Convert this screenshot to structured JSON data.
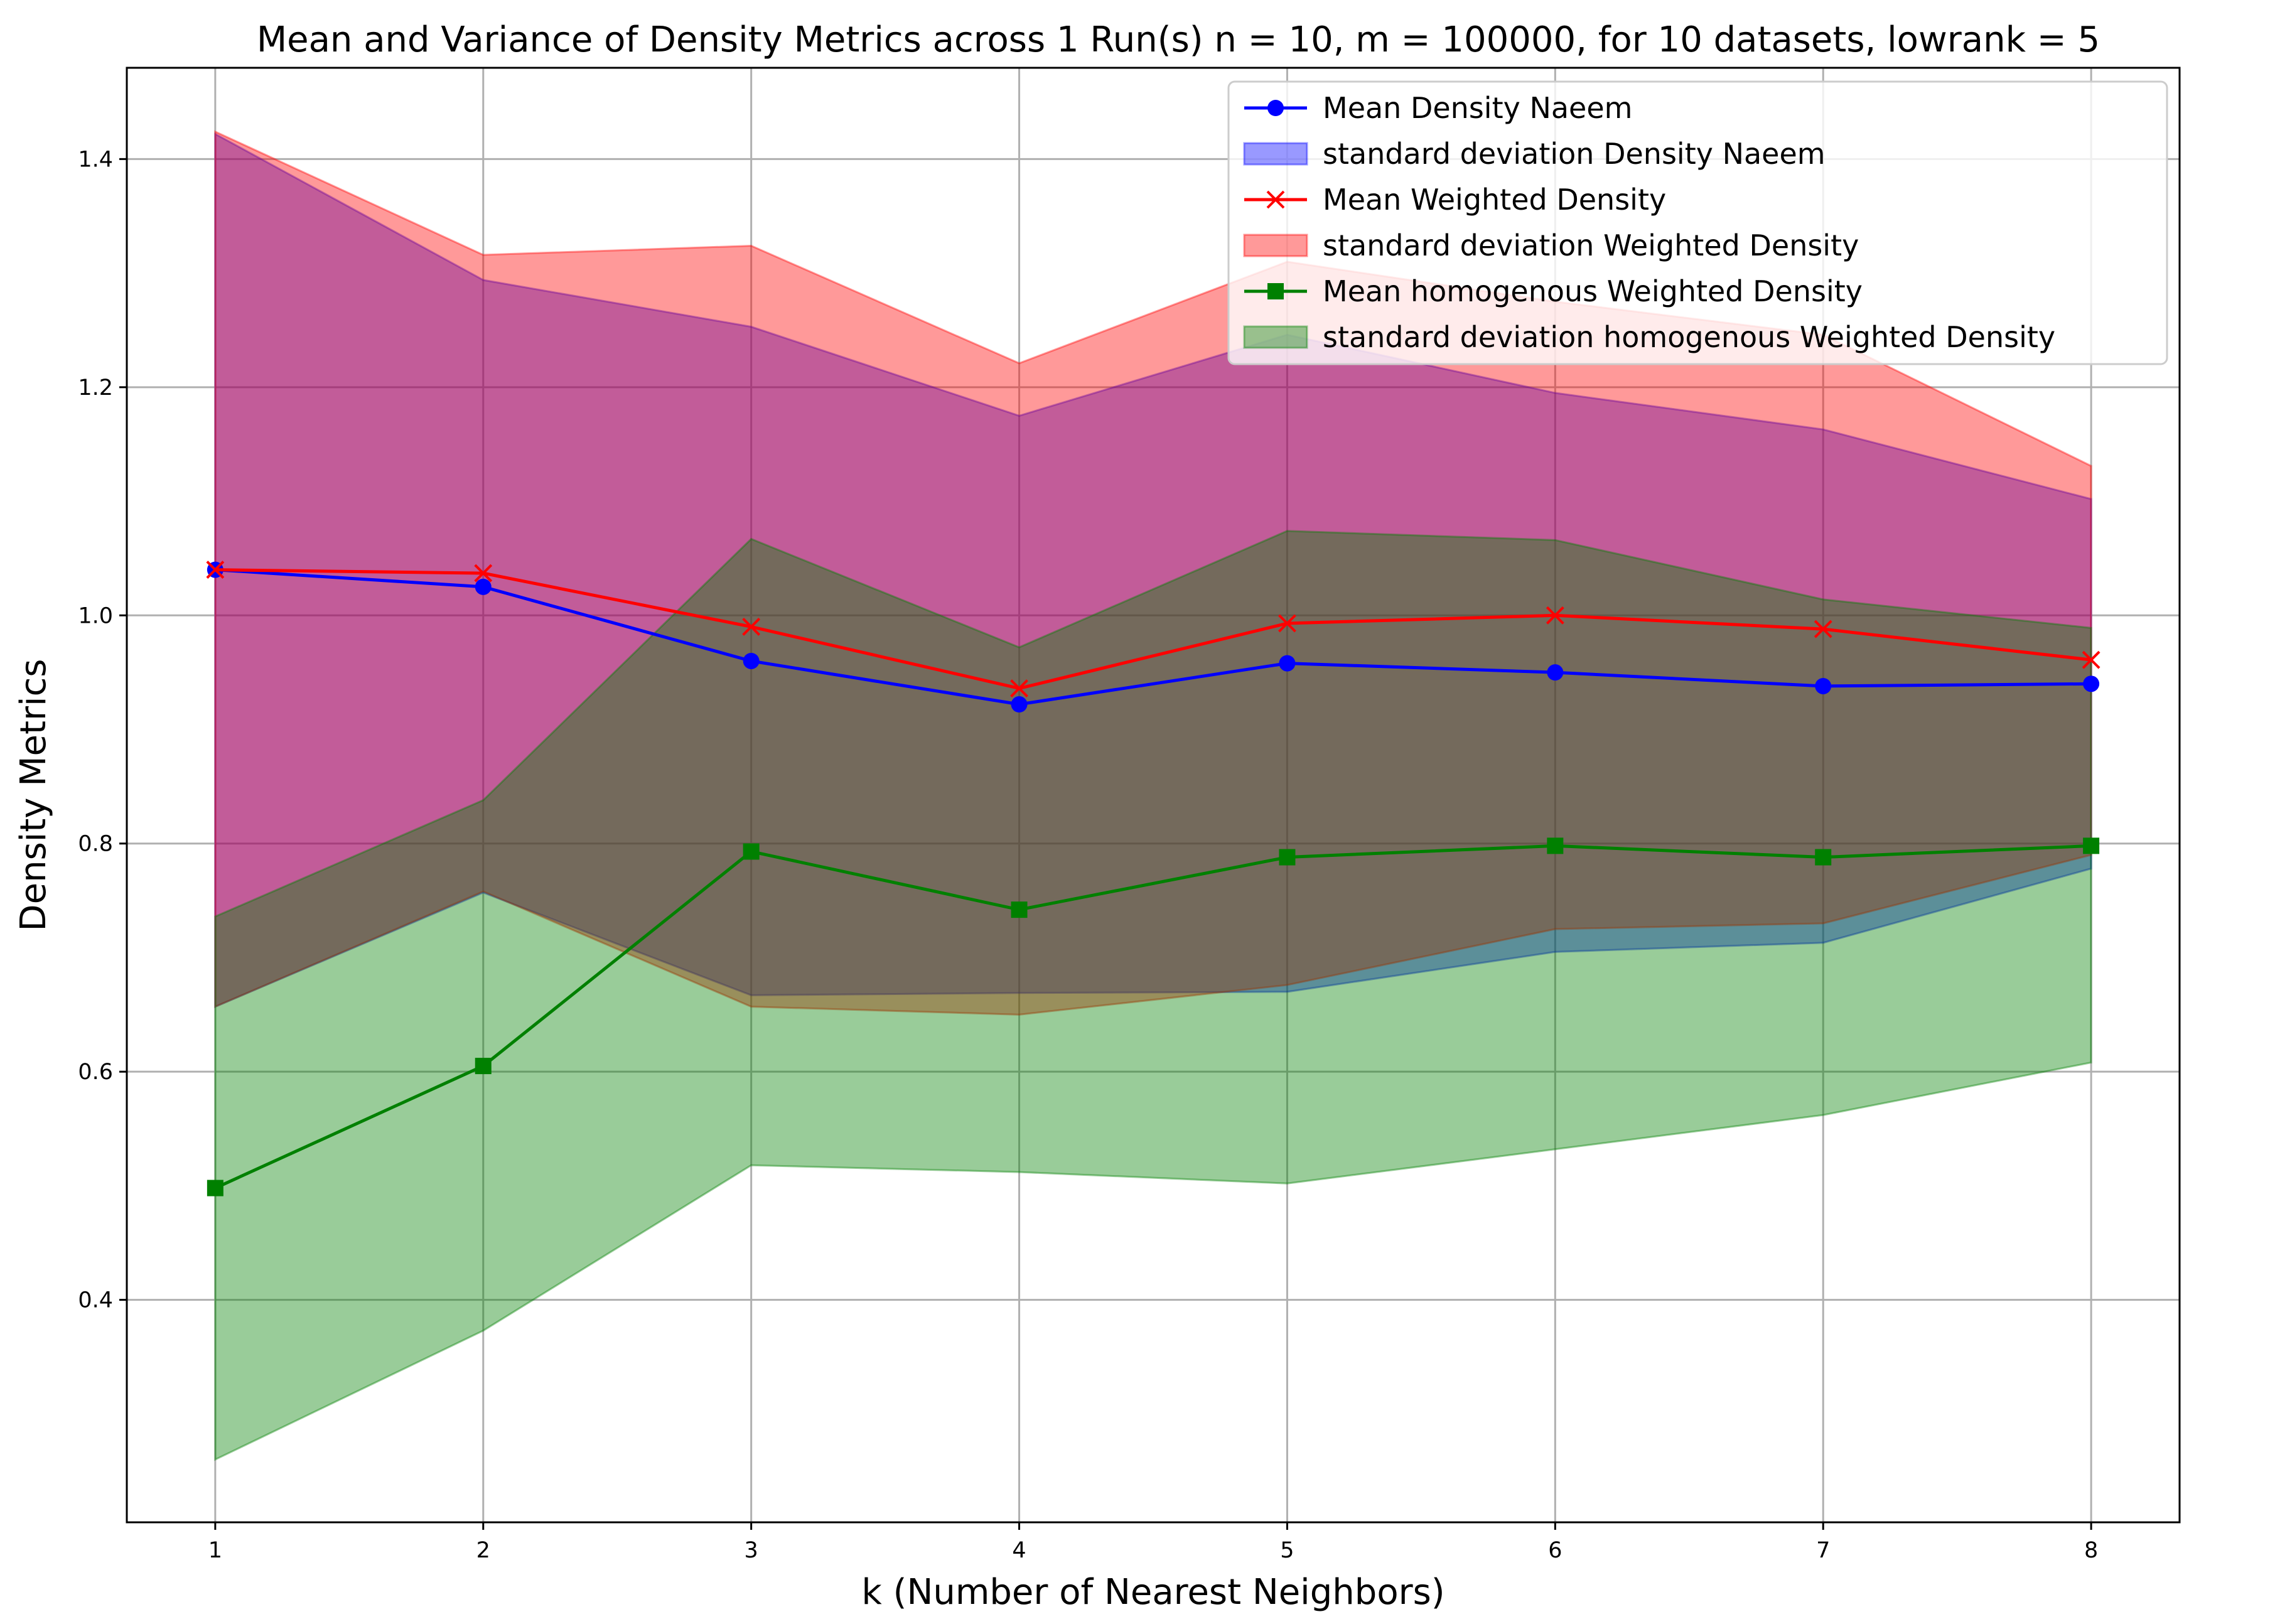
{
  "chart_data": {
    "type": "line",
    "title": "Mean and Variance of Density Metrics across 1 Run(s) n  = 10, m  = 100000, for 10 datasets, lowrank = 5",
    "xlabel": "k (Number of Nearest Neighbors)",
    "ylabel": "Density Metrics",
    "x": [
      1,
      2,
      3,
      4,
      5,
      6,
      7,
      8
    ],
    "xticks": [
      "1",
      "2",
      "3",
      "4",
      "5",
      "6",
      "7",
      "8"
    ],
    "yticks": [
      "0.4",
      "0.6",
      "0.8",
      "1.0",
      "1.2",
      "1.4"
    ],
    "ytick_values": [
      0.4,
      0.6,
      0.8,
      1.0,
      1.2,
      1.4
    ],
    "xlim": [
      0.67,
      8.33
    ],
    "ylim": [
      0.205,
      1.48
    ],
    "grid": true,
    "legend_position": "top-right",
    "series": [
      {
        "name": "Mean Density Naeem",
        "color": "#0000ff",
        "marker": "circle",
        "values": [
          1.04,
          1.025,
          0.96,
          0.922,
          0.958,
          0.95,
          0.938,
          0.94
        ],
        "band_name": "standard deviation Density Naeem",
        "band_color": "#0000ff",
        "band_lower": [
          0.657,
          0.757,
          0.667,
          0.669,
          0.67,
          0.705,
          0.713,
          0.778
        ],
        "band_upper": [
          1.422,
          1.294,
          1.253,
          1.175,
          1.246,
          1.195,
          1.163,
          1.102
        ]
      },
      {
        "name": "Mean Weighted Density",
        "color": "#ff0000",
        "marker": "x",
        "values": [
          1.04,
          1.037,
          0.99,
          0.936,
          0.993,
          1.0,
          0.988,
          0.961
        ],
        "band_name": "standard deviation Weighted Density",
        "band_color": "#ff0000",
        "band_lower": [
          0.657,
          0.758,
          0.657,
          0.65,
          0.676,
          0.725,
          0.73,
          0.79
        ],
        "band_upper": [
          1.424,
          1.316,
          1.324,
          1.221,
          1.31,
          1.275,
          1.246,
          1.131
        ]
      },
      {
        "name": "Mean homogenous Weighted Density",
        "color": "#008000",
        "marker": "square",
        "values": [
          0.498,
          0.605,
          0.793,
          0.742,
          0.788,
          0.798,
          0.788,
          0.798
        ],
        "band_name": "standard deviation homogenous Weighted Density",
        "band_color": "#008000",
        "band_lower": [
          0.26,
          0.373,
          0.518,
          0.512,
          0.502,
          0.532,
          0.562,
          0.608
        ],
        "band_upper": [
          0.736,
          0.838,
          1.067,
          0.972,
          1.074,
          1.066,
          1.014,
          0.989
        ]
      }
    ]
  }
}
